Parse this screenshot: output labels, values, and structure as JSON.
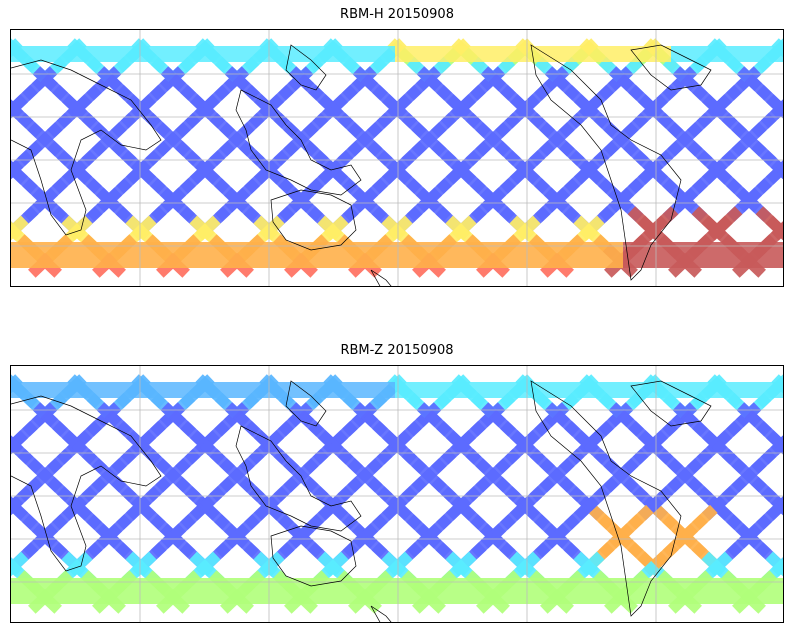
{
  "figure": {
    "panels": [
      {
        "title": "RBM-H 20150908",
        "colors": {
          "south_band": "#e85a5a",
          "north_band": "#ffb06a",
          "tracks": "#5a6cf0"
        }
      },
      {
        "title": "RBM-Z 20150908",
        "colors": {
          "south_band": "#ffd86a",
          "north_band": "#7ee0ff",
          "tracks": "#5a6cf0"
        }
      }
    ],
    "colormap": [
      "#4b3cf0",
      "#5c6bff",
      "#59b6ff",
      "#59ecff",
      "#b0ff7a",
      "#ffee66",
      "#ffb04a",
      "#ff7060",
      "#c85a5a"
    ],
    "projection": "Pacific-centred equirectangular",
    "gridlines": true
  }
}
